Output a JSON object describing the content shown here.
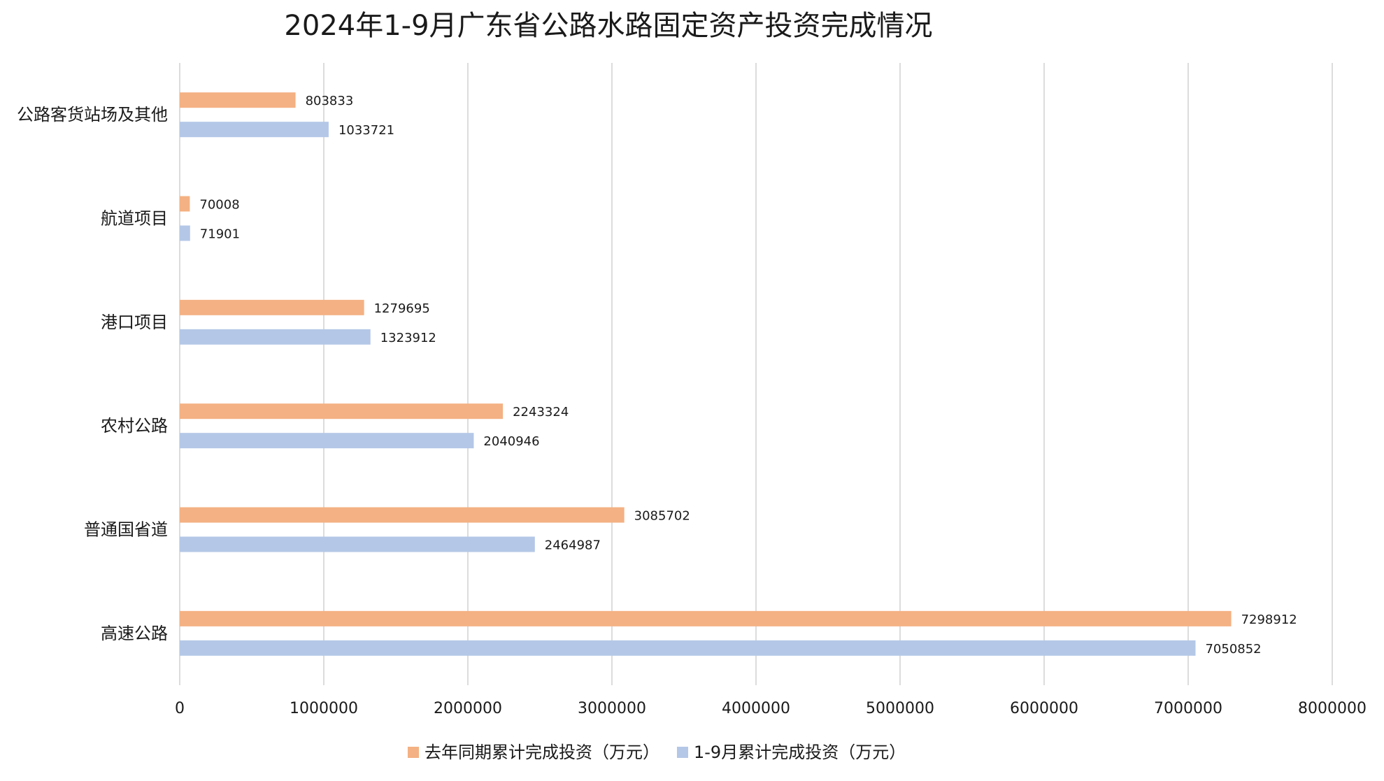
{
  "chart_data": {
    "type": "bar",
    "orientation": "horizontal",
    "title": "2024年1-9月广东省公路水路固定资产投资完成情况",
    "categories": [
      "公路客货站场及其他",
      "航道项目",
      "港口项目",
      "农村公路",
      "普通国省道",
      "高速公路"
    ],
    "series": [
      {
        "name": "去年同期累计完成投资（万元）",
        "color": "#f4b183",
        "values": [
          803833,
          70008,
          1279695,
          2243324,
          3085702,
          7298912
        ]
      },
      {
        "name": "1-9月累计完成投资（万元）",
        "color": "#b4c7e7",
        "values": [
          1033721,
          71901,
          1323912,
          2040946,
          2464987,
          7050852
        ]
      }
    ],
    "xlim": [
      0,
      8000000
    ],
    "xticks": [
      0,
      1000000,
      2000000,
      3000000,
      4000000,
      5000000,
      6000000,
      7000000,
      8000000
    ],
    "grid": "vertical",
    "legend_position": "bottom"
  }
}
